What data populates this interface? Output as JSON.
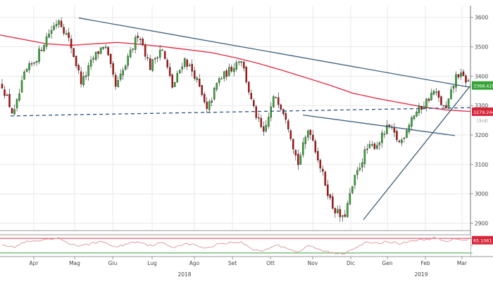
{
  "chart_data": {
    "type": "candlestick",
    "grid": true,
    "colors": {
      "background": "#ffffff",
      "grid": "#e8e8e8",
      "up_candle": "#31b331",
      "down_candle": "#c40d0d",
      "moving_average": "#e0334d",
      "trendline": "#3e5f7a",
      "support_dashed": "#2e4f82",
      "price_badge": "#37a337",
      "ma_badge": "#d6263a",
      "rsi_line": "#d9a0a5",
      "rsi_upper": "#e0334d",
      "rsi_lower": "#3aa13a",
      "rsi_badge": "#d6263a"
    },
    "price_panel": {
      "y_ticks": [
        2900,
        3000,
        3100,
        3200,
        3300,
        3400,
        3500,
        3600
      ],
      "ylim": [
        2875,
        3640
      ],
      "last_price": 3368.4298,
      "last_price_label": "3368.4298",
      "ma_value": 3279.2447,
      "ma_value_label": "3279.2447",
      "ma_right_text": "(3rd)",
      "dashed_support_from": 3265,
      "dashed_support_to": 3293,
      "trendline_high": {
        "from": 3598,
        "to": 3362
      },
      "trendline_mid": {
        "from": 3268,
        "to": 3198
      },
      "trendline_rise": {
        "from": 2912,
        "to": 3368
      }
    },
    "x_axis": {
      "months": [
        "Apr",
        "Mag",
        "Giu",
        "Lug",
        "Ago",
        "Set",
        "Ott",
        "Nov",
        "Dic",
        "Gen",
        "Feb",
        "Mar"
      ],
      "years": [
        "2018",
        "2019"
      ]
    },
    "ohlc": {
      "anchors": [
        3370,
        3265,
        3410,
        3460,
        3540,
        3595,
        3510,
        3375,
        3460,
        3510,
        3360,
        3450,
        3550,
        3430,
        3500,
        3360,
        3460,
        3400,
        3280,
        3385,
        3420,
        3465,
        3300,
        3200,
        3340,
        3260,
        3100,
        3230,
        3090,
        2960,
        2910,
        3050,
        3150,
        3170,
        3230,
        3170,
        3260,
        3300,
        3350,
        3280,
        3410,
        3380
      ],
      "moving_average": [
        3540,
        3525,
        3510,
        3505,
        3510,
        3515,
        3508,
        3500,
        3490,
        3480,
        3463,
        3443,
        3420,
        3395,
        3370,
        3342,
        3325,
        3310,
        3295,
        3285,
        3280
      ]
    },
    "rsi": {
      "value_label": "65.1061",
      "upper": 70,
      "lower": 30,
      "ylim": [
        20,
        80
      ],
      "anchors": [
        55,
        45,
        60,
        62,
        66,
        70,
        55,
        48,
        58,
        60,
        45,
        56,
        62,
        50,
        58,
        46,
        55,
        52,
        42,
        56,
        58,
        60,
        40,
        36,
        52,
        45,
        32,
        50,
        38,
        30,
        28,
        45,
        58,
        56,
        62,
        55,
        64,
        66,
        72,
        60,
        70,
        65
      ]
    }
  }
}
